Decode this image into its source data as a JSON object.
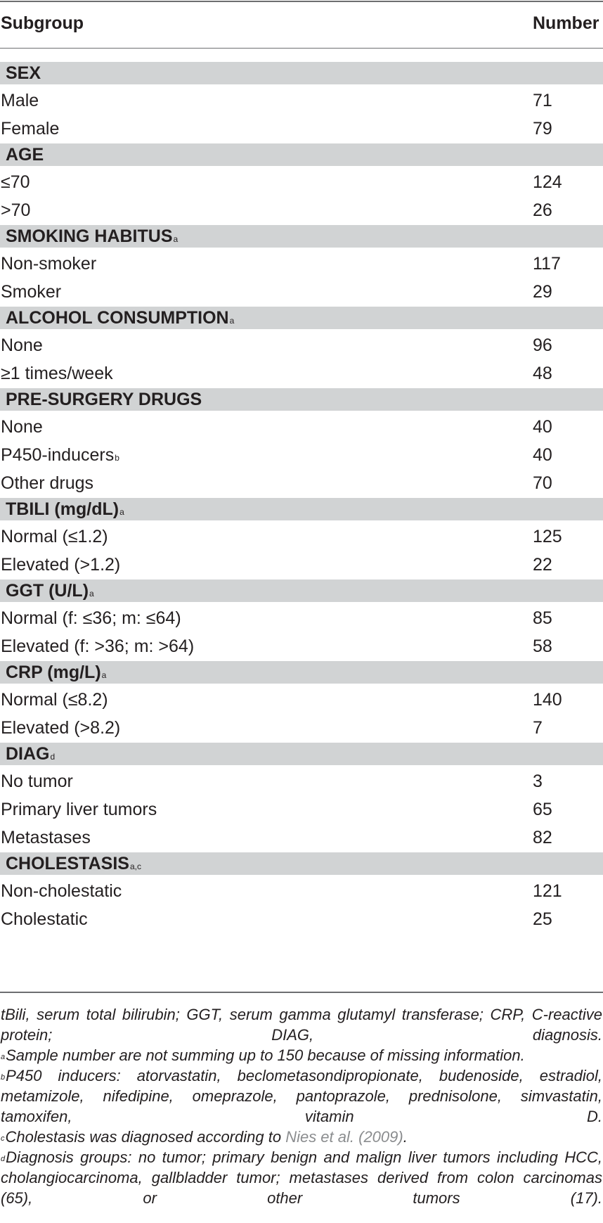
{
  "header": {
    "col1": "Subgroup",
    "col2": "Number"
  },
  "sections": [
    {
      "title": "SEX",
      "sup": "",
      "rows": [
        {
          "label": "Male",
          "sup": "",
          "value": "71"
        },
        {
          "label": "Female",
          "sup": "",
          "value": "79"
        }
      ]
    },
    {
      "title": "AGE",
      "sup": "",
      "rows": [
        {
          "label": "≤70",
          "sup": "",
          "value": "124"
        },
        {
          "label": ">70",
          "sup": "",
          "value": "26"
        }
      ]
    },
    {
      "title": "SMOKING HABITUS",
      "sup": "a",
      "rows": [
        {
          "label": "Non-smoker",
          "sup": "",
          "value": "117"
        },
        {
          "label": "Smoker",
          "sup": "",
          "value": "29"
        }
      ]
    },
    {
      "title": "ALCOHOL CONSUMPTION",
      "sup": "a",
      "rows": [
        {
          "label": "None",
          "sup": "",
          "value": "96"
        },
        {
          "label": "≥1 times/week",
          "sup": "",
          "value": "48"
        }
      ]
    },
    {
      "title": "PRE-SURGERY DRUGS",
      "sup": "",
      "rows": [
        {
          "label": "None",
          "sup": "",
          "value": "40"
        },
        {
          "label": "P450-inducers",
          "sup": "b",
          "value": "40"
        },
        {
          "label": "Other drugs",
          "sup": "",
          "value": "70"
        }
      ]
    },
    {
      "title": "TBILI (mg/dL)",
      "sup": "a",
      "rows": [
        {
          "label": "Normal (≤1.2)",
          "sup": "",
          "value": "125"
        },
        {
          "label": "Elevated (>1.2)",
          "sup": "",
          "value": "22"
        }
      ]
    },
    {
      "title": "GGT (U/L)",
      "sup": "a",
      "rows": [
        {
          "label": "Normal (f: ≤36; m: ≤64)",
          "sup": "",
          "value": "85"
        },
        {
          "label": "Elevated (f: >36; m: >64)",
          "sup": "",
          "value": "58"
        }
      ]
    },
    {
      "title": "CRP (mg/L)",
      "sup": "a",
      "rows": [
        {
          "label": "Normal (≤8.2)",
          "sup": "",
          "value": "140"
        },
        {
          "label": "Elevated (>8.2)",
          "sup": "",
          "value": "7"
        }
      ]
    },
    {
      "title": "DIAG",
      "sup": "d",
      "rows": [
        {
          "label": "No tumor",
          "sup": "",
          "value": "3"
        },
        {
          "label": "Primary liver tumors",
          "sup": "",
          "value": "65"
        },
        {
          "label": "Metastases",
          "sup": "",
          "value": "82"
        }
      ]
    },
    {
      "title": "CHOLESTASIS",
      "sup": "a,c",
      "rows": [
        {
          "label": "Non-cholestatic",
          "sup": "",
          "value": "121"
        },
        {
          "label": "Cholestatic",
          "sup": "",
          "value": "25"
        }
      ]
    }
  ],
  "footnotes": {
    "abbrev": "tBili, serum total bilirubin; GGT, serum gamma glutamyl transferase; CRP, C-reactive protein; DIAG, diagnosis.",
    "a_mark": "a",
    "a_text": "Sample number are not summing up to 150 because of missing information.",
    "b_mark": "b",
    "b_text": "P450 inducers: atorvastatin, beclometasondipropionate, budenoside, estradiol, metamizole, nifedipine, omeprazole, pantoprazole, prednisolone, simvastatin, tamoxifen, vitamin D.",
    "c_mark": "c",
    "c_text": "Cholestasis was diagnosed according to ",
    "c_cite": "Nies et al. (2009)",
    "c_end": ".",
    "d_mark": "d",
    "d_text": "Diagnosis groups: no tumor; primary benign and malign liver tumors including HCC, cholangiocarcinoma, gallbladder tumor; metastases derived from colon carcinomas (65), or other tumors (17)."
  }
}
